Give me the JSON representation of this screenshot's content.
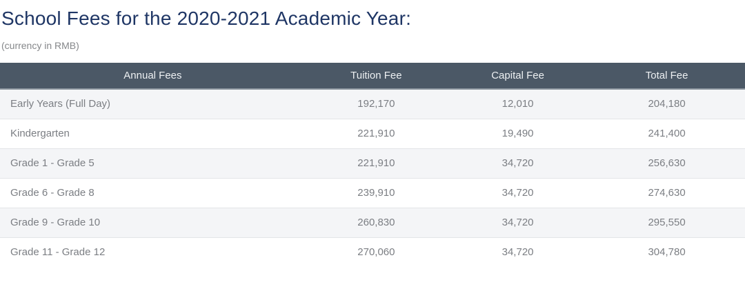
{
  "page": {
    "title": "School Fees for the 2020-2021 Academic Year:",
    "subtitle": "(currency in RMB)"
  },
  "colors": {
    "title_text": "#1f3665",
    "subtitle_text": "#85878a",
    "header_bg": "#4b5866",
    "header_text": "#edf0f2",
    "row_text": "#7b7e83",
    "stripe_bg": "#f4f5f7",
    "row_border": "#e3e5e7"
  },
  "table": {
    "columns": [
      "Annual Fees",
      "Tuition Fee",
      "Capital Fee",
      "Total Fee"
    ],
    "rows": [
      [
        "Early Years (Full Day)",
        "192,170",
        "12,010",
        "204,180"
      ],
      [
        "Kindergarten",
        "221,910",
        "19,490",
        "241,400"
      ],
      [
        "Grade 1 - Grade 5",
        "221,910",
        "34,720",
        "256,630"
      ],
      [
        "Grade 6 - Grade 8",
        "239,910",
        "34,720",
        "274,630"
      ],
      [
        "Grade 9 - Grade 10",
        "260,830",
        "34,720",
        "295,550"
      ],
      [
        "Grade 11 - Grade 12",
        "270,060",
        "34,720",
        "304,780"
      ]
    ]
  }
}
